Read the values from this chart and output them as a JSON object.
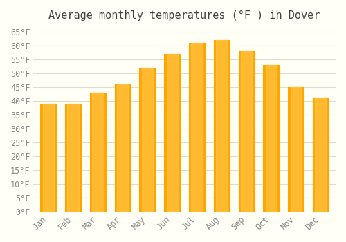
{
  "title": "Average monthly temperatures (°F ) in Dover",
  "months": [
    "Jan",
    "Feb",
    "Mar",
    "Apr",
    "May",
    "Jun",
    "Jul",
    "Aug",
    "Sep",
    "Oct",
    "Nov",
    "Dec"
  ],
  "values": [
    39,
    39,
    43,
    46,
    52,
    57,
    61,
    62,
    58,
    53,
    45,
    41
  ],
  "bar_color": "#FFA500",
  "bar_edge_color": "#E08800",
  "ylim": [
    0,
    67
  ],
  "yticks": [
    0,
    5,
    10,
    15,
    20,
    25,
    30,
    35,
    40,
    45,
    50,
    55,
    60,
    65
  ],
  "ytick_labels": [
    "0°F",
    "5°F",
    "10°F",
    "15°F",
    "20°F",
    "25°F",
    "30°F",
    "35°F",
    "40°F",
    "45°F",
    "50°F",
    "55°F",
    "60°F",
    "65°F"
  ],
  "background_color": "#FFFFF5",
  "grid_color": "#DDDDCC",
  "title_fontsize": 11,
  "tick_fontsize": 8.5,
  "font_family": "monospace"
}
